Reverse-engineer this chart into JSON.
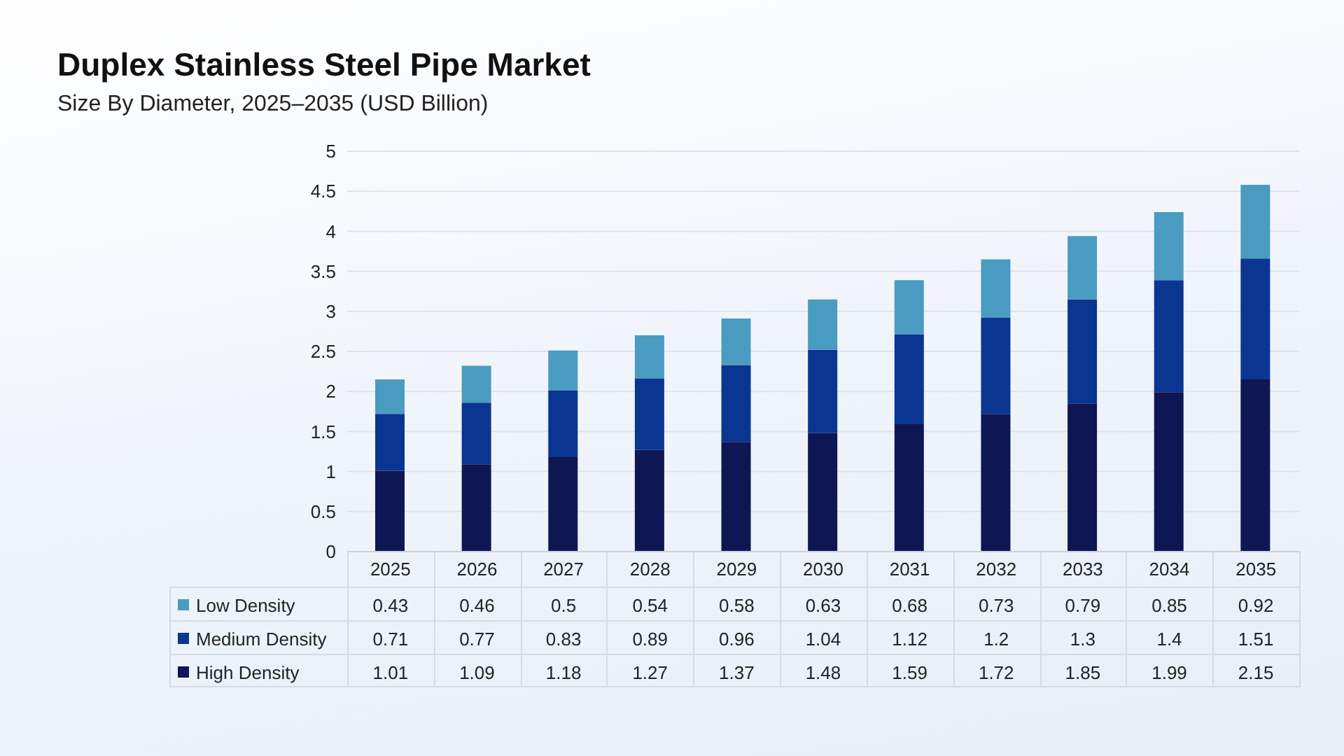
{
  "chart_data": {
    "type": "bar",
    "title": "Duplex Stainless Steel Pipe Market",
    "subtitle": "Size By Diameter, 2025–2035 (USD Billion)",
    "categories": [
      "2025",
      "2026",
      "2027",
      "2028",
      "2029",
      "2030",
      "2031",
      "2032",
      "2033",
      "2034",
      "2035"
    ],
    "series": [
      {
        "name": "High Density",
        "color": "#0f1654",
        "values": [
          1.01,
          1.09,
          1.18,
          1.27,
          1.37,
          1.48,
          1.59,
          1.72,
          1.85,
          1.99,
          2.15
        ]
      },
      {
        "name": "Medium Density",
        "color": "#0a3590",
        "values": [
          0.71,
          0.77,
          0.83,
          0.89,
          0.96,
          1.04,
          1.12,
          1.2,
          1.3,
          1.4,
          1.51
        ]
      },
      {
        "name": "Low Density",
        "color": "#4a9bc1",
        "values": [
          0.43,
          0.46,
          0.5,
          0.54,
          0.58,
          0.63,
          0.68,
          0.73,
          0.79,
          0.85,
          0.92
        ]
      }
    ],
    "stacked": true,
    "ylim": [
      0,
      5
    ],
    "yticks": [
      0,
      0.5,
      1,
      1.5,
      2,
      2.5,
      3,
      3.5,
      4,
      4.5,
      5
    ],
    "grid": "y",
    "legend": "bottom",
    "data_labels": true
  }
}
